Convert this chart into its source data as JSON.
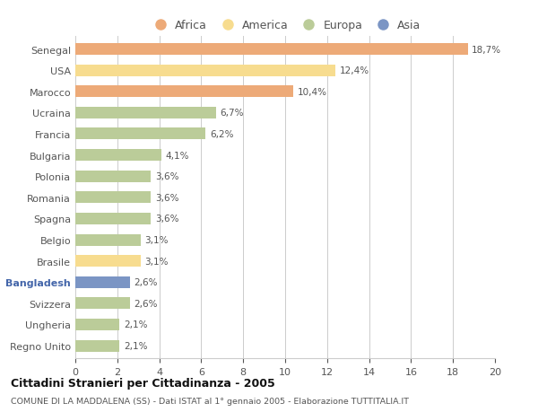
{
  "countries": [
    "Senegal",
    "USA",
    "Marocco",
    "Ucraina",
    "Francia",
    "Bulgaria",
    "Polonia",
    "Romania",
    "Spagna",
    "Belgio",
    "Brasile",
    "Bangladesh",
    "Svizzera",
    "Ungheria",
    "Regno Unito"
  ],
  "values": [
    18.7,
    12.4,
    10.4,
    6.7,
    6.2,
    4.1,
    3.6,
    3.6,
    3.6,
    3.1,
    3.1,
    2.6,
    2.6,
    2.1,
    2.1
  ],
  "labels": [
    "18,7%",
    "12,4%",
    "10,4%",
    "6,7%",
    "6,2%",
    "4,1%",
    "3,6%",
    "3,6%",
    "3,6%",
    "3,1%",
    "3,1%",
    "2,6%",
    "2,6%",
    "2,1%",
    "2,1%"
  ],
  "categories": [
    "Africa",
    "America",
    "Africa",
    "Europa",
    "Europa",
    "Europa",
    "Europa",
    "Europa",
    "Europa",
    "Europa",
    "America",
    "Asia",
    "Europa",
    "Europa",
    "Europa"
  ],
  "colors": {
    "Africa": "#EDAA78",
    "America": "#F7DC8F",
    "Europa": "#BBCC99",
    "Asia": "#7B95C4"
  },
  "xlim": [
    0,
    20
  ],
  "xticks": [
    0,
    2,
    4,
    6,
    8,
    10,
    12,
    14,
    16,
    18,
    20
  ],
  "title": "Cittadini Stranieri per Cittadinanza - 2005",
  "subtitle": "COMUNE DI LA MADDALENA (SS) - Dati ISTAT al 1° gennaio 2005 - Elaborazione TUTTITALIA.IT",
  "background_color": "#FFFFFF",
  "grid_color": "#CCCCCC",
  "text_color": "#555555",
  "legend_entries": [
    "Africa",
    "America",
    "Europa",
    "Asia"
  ],
  "bar_height": 0.55
}
